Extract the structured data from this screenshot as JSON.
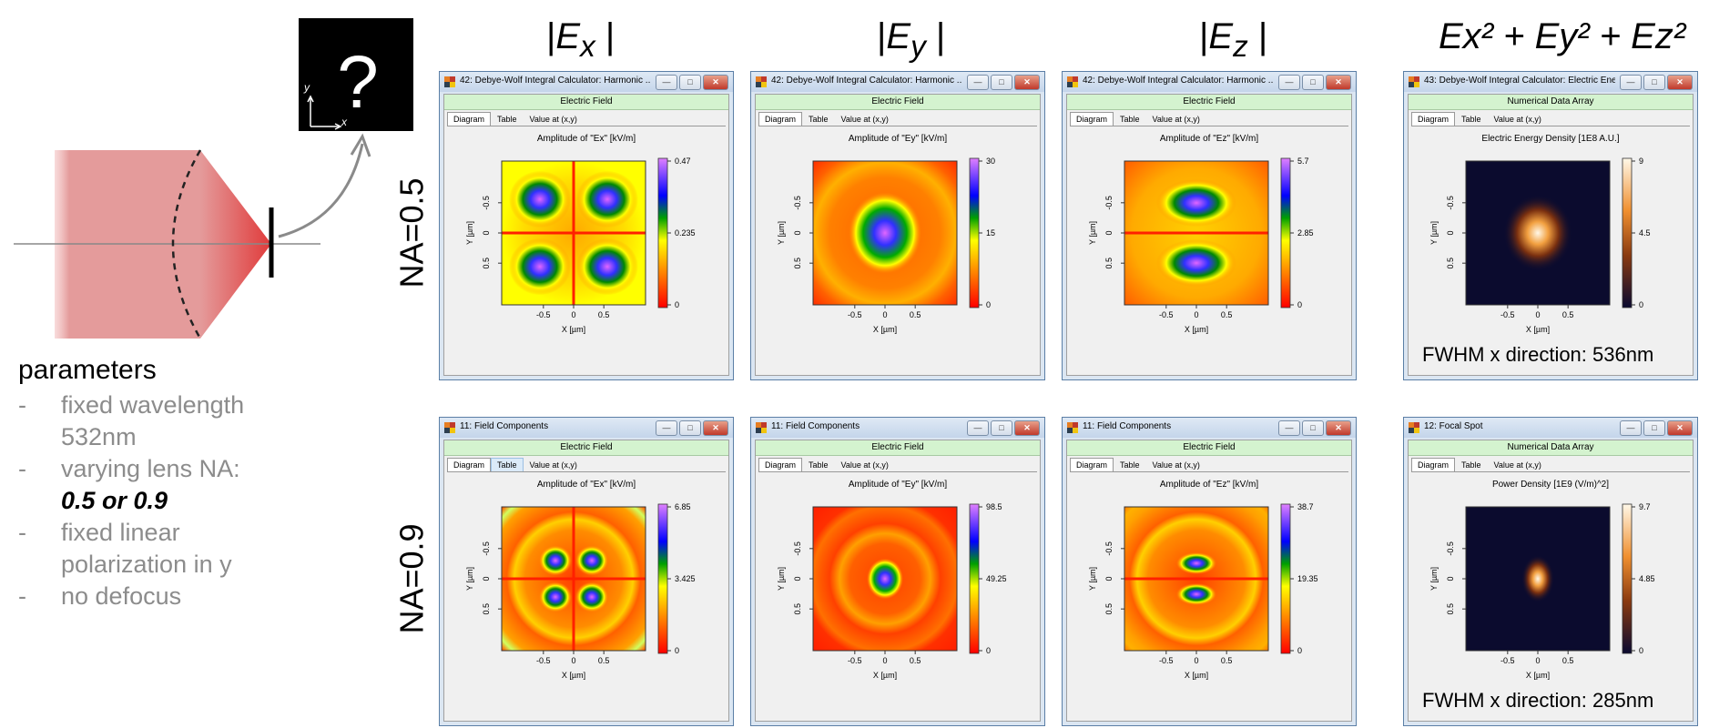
{
  "columns": [
    {
      "id": "ex",
      "base": "E",
      "sub": "x",
      "kind": "abs"
    },
    {
      "id": "ey",
      "base": "E",
      "sub": "y",
      "kind": "abs"
    },
    {
      "id": "ez",
      "base": "E",
      "sub": "z",
      "kind": "abs"
    },
    {
      "id": "sum",
      "text": "Ex² + Ey² + Ez²",
      "kind": "sum"
    }
  ],
  "rows": [
    {
      "label": "NA=0.5"
    },
    {
      "label": "NA=0.9"
    }
  ],
  "schematic": {
    "inset_label": "?",
    "inset_axis_x": "x",
    "inset_axis_y": "y"
  },
  "parameters": {
    "title": "parameters",
    "items": [
      {
        "dash": "-",
        "text": "fixed wavelength 532nm"
      },
      {
        "dash": "-",
        "text": "varying lens NA:",
        "emph": "0.5 or 0.9"
      },
      {
        "dash": "-",
        "text": "fixed linear polarization in y"
      },
      {
        "dash": "-",
        "text": "no defocus"
      }
    ]
  },
  "tabs": [
    "Diagram",
    "Table",
    "Value at (x,y)"
  ],
  "windows": [
    {
      "title": "42: Debye-Wolf Integral Calculator: Harmonic ...",
      "section": "Electric Field",
      "plot_title": "Amplitude of \"Ex\"  [kV/m]",
      "colormap": "rainbow",
      "pattern": "ex",
      "ticks": [
        "0.47",
        "0.235",
        "0"
      ],
      "xlabel": "X [µm]",
      "ylabel": "Y [µm]",
      "xticks": [
        "-0.5",
        "0",
        "0.5"
      ],
      "yticks": [
        "0.5",
        "0",
        "-0.5"
      ],
      "fwhm": ""
    },
    {
      "title": "42: Debye-Wolf Integral Calculator: Harmonic ...",
      "section": "Electric Field",
      "plot_title": "Amplitude of \"Ey\"  [kV/m]",
      "colormap": "rainbow",
      "pattern": "ey",
      "ticks": [
        "30",
        "15",
        "0"
      ],
      "xlabel": "X [µm]",
      "ylabel": "Y [µm]",
      "xticks": [
        "-0.5",
        "0",
        "0.5"
      ],
      "yticks": [
        "0.5",
        "0",
        "-0.5"
      ],
      "fwhm": ""
    },
    {
      "title": "42: Debye-Wolf Integral Calculator: Harmonic ...",
      "section": "Electric Field",
      "plot_title": "Amplitude of \"Ez\"  [kV/m]",
      "colormap": "rainbow",
      "pattern": "ez",
      "ticks": [
        "5.7",
        "2.85",
        "0"
      ],
      "xlabel": "X [µm]",
      "ylabel": "Y [µm]",
      "xticks": [
        "-0.5",
        "0",
        "0.5"
      ],
      "yticks": [
        "0.5",
        "0",
        "-0.5"
      ],
      "fwhm": ""
    },
    {
      "title": "43: Debye-Wolf Integral Calculator: Electric Ene...",
      "section": "Numerical Data Array",
      "plot_title": "Electric Energy Density  [1E8 A.U.]",
      "colormap": "hot",
      "pattern": "spot",
      "ticks": [
        "9",
        "4.5",
        "0"
      ],
      "xlabel": "X [µm]",
      "ylabel": "Y [µm]",
      "xticks": [
        "-0.5",
        "0",
        "0.5"
      ],
      "yticks": [
        "0.5",
        "0",
        "-0.5"
      ],
      "fwhm": "FWHM x direction: 536nm"
    },
    {
      "title": "11: Field Components",
      "section": "Electric Field",
      "plot_title": "Amplitude of \"Ex\"  [kV/m]",
      "colormap": "rainbow",
      "pattern": "ex2",
      "ticks": [
        "6.85",
        "3.425",
        "0"
      ],
      "xlabel": "X [µm]",
      "ylabel": "Y [µm]",
      "xticks": [
        "-0.5",
        "0",
        "0.5"
      ],
      "yticks": [
        "0.5",
        "0",
        "-0.5"
      ],
      "fwhm": ""
    },
    {
      "title": "11: Field Components",
      "section": "Electric Field",
      "plot_title": "Amplitude of \"Ey\"  [kV/m]",
      "colormap": "rainbow",
      "pattern": "ey2",
      "ticks": [
        "98.5",
        "49.25",
        "0"
      ],
      "xlabel": "X [µm]",
      "ylabel": "Y [µm]",
      "xticks": [
        "-0.5",
        "0",
        "0.5"
      ],
      "yticks": [
        "0.5",
        "0",
        "-0.5"
      ],
      "fwhm": ""
    },
    {
      "title": "11: Field Components",
      "section": "Electric Field",
      "plot_title": "Amplitude of \"Ez\"  [kV/m]",
      "colormap": "rainbow",
      "pattern": "ez2",
      "ticks": [
        "38.7",
        "19.35",
        "0"
      ],
      "xlabel": "X [µm]",
      "ylabel": "Y [µm]",
      "xticks": [
        "-0.5",
        "0",
        "0.5"
      ],
      "yticks": [
        "0.5",
        "0",
        "-0.5"
      ],
      "fwhm": ""
    },
    {
      "title": "12: Focal Spot",
      "section": "Numerical Data Array",
      "plot_title": "Power Density  [1E9 (V/m)^2]",
      "colormap": "hot",
      "pattern": "spot2",
      "ticks": [
        "9.7",
        "4.85",
        "0"
      ],
      "xlabel": "X [µm]",
      "ylabel": "Y [µm]",
      "xticks": [
        "-0.5",
        "0",
        "0.5"
      ],
      "yticks": [
        "0.5",
        "0",
        "-0.5"
      ],
      "fwhm": "FWHM x direction: 285nm"
    }
  ]
}
